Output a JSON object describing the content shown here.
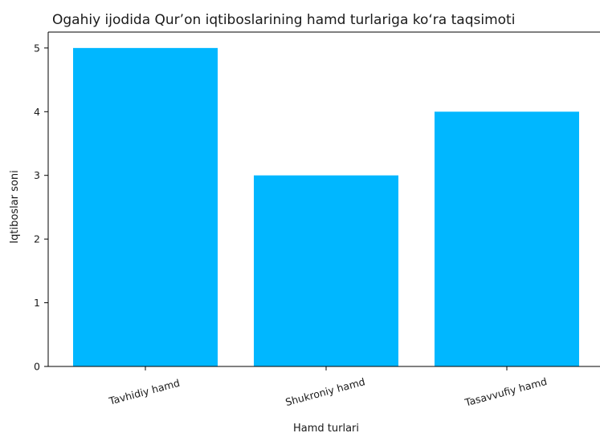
{
  "chart_data": {
    "type": "bar",
    "title": "Ogahiy ijodida Qur’on iqtiboslarining hamd turlariga ko‘ra taqsimoti",
    "xlabel": "Hamd turlari",
    "ylabel": "Iqtiboslar soni",
    "categories": [
      "Tavhidiy hamd",
      "Shukroniy hamd",
      "Tasavvufiy hamd"
    ],
    "values": [
      5,
      3,
      4
    ],
    "ylim": [
      0,
      5.25
    ],
    "yticks": [
      0,
      1,
      2,
      3,
      4,
      5
    ],
    "bar_color": "#00b7ff",
    "grid": false,
    "legend": "none"
  }
}
